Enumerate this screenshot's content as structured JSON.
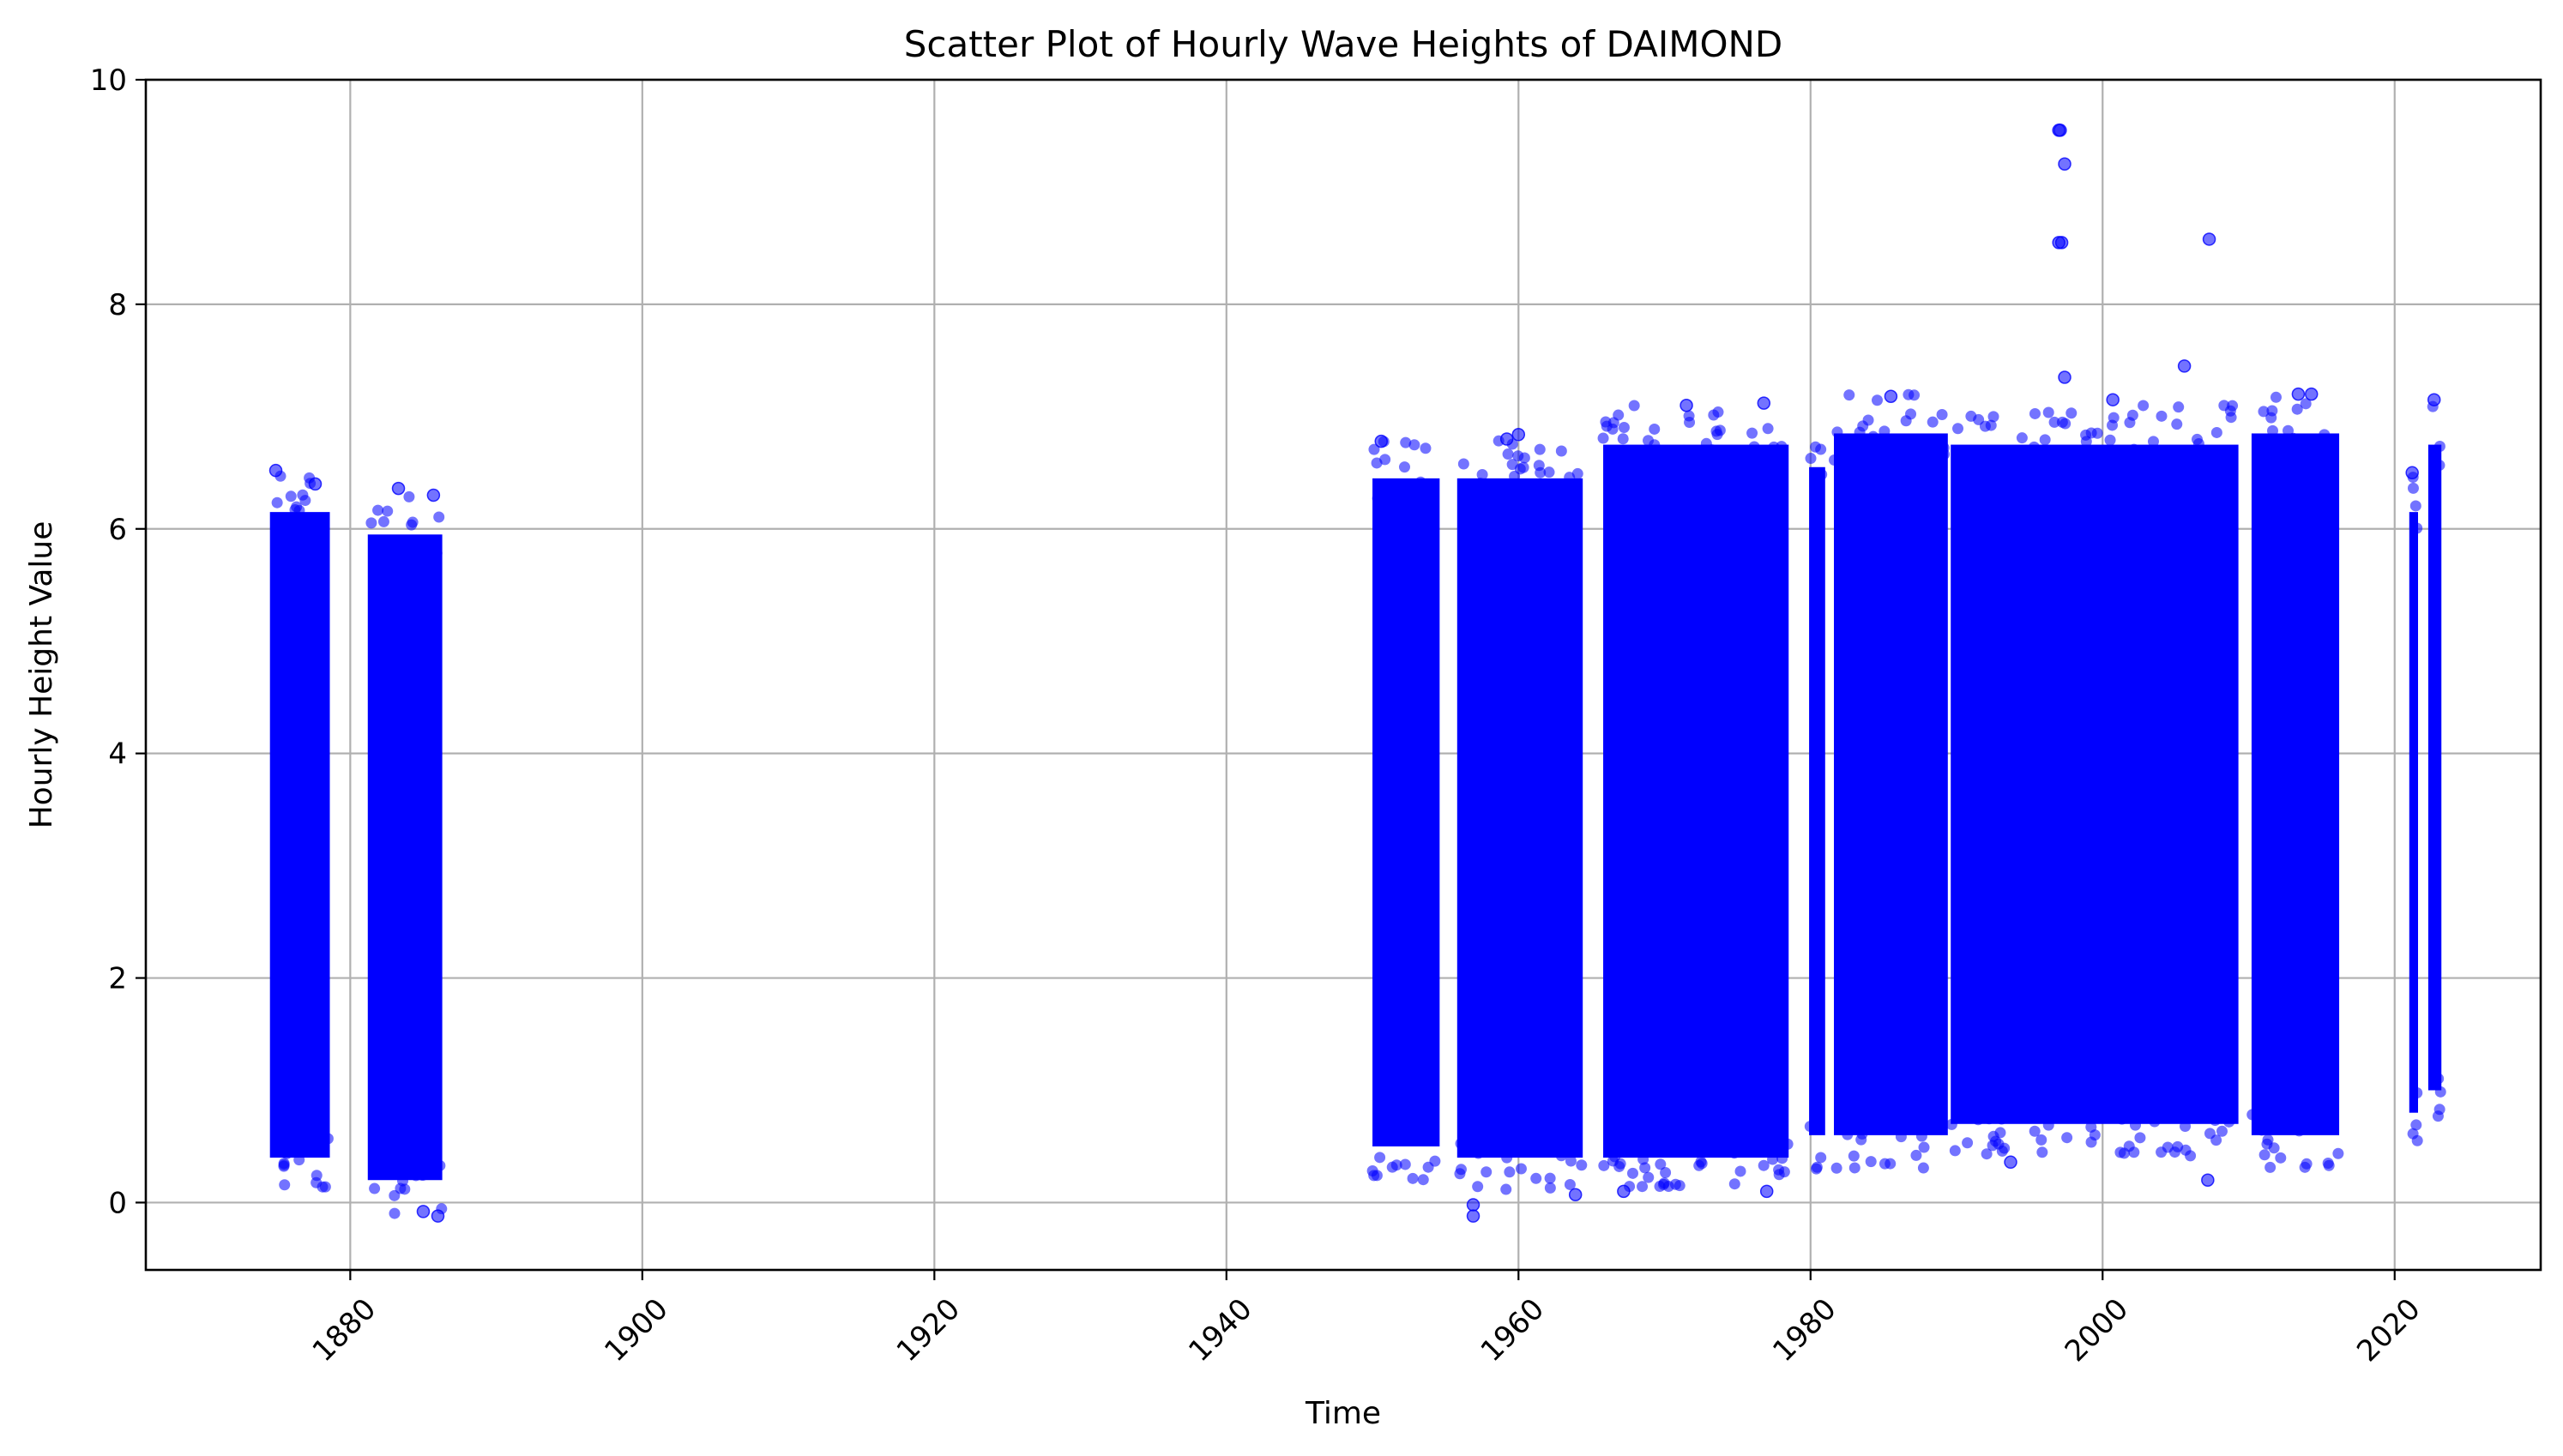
{
  "chart_data": {
    "type": "scatter",
    "title": "Scatter Plot of Hourly Wave Heights of DAIMOND",
    "xlabel": "Time",
    "ylabel": "Hourly Height Value",
    "xlim": [
      1866,
      2030
    ],
    "ylim": [
      -0.6,
      10
    ],
    "x_ticks": [
      1880,
      1900,
      1920,
      1940,
      1960,
      1980,
      2000,
      2020
    ],
    "x_tick_labels": [
      "1880",
      "1900",
      "1920",
      "1940",
      "1960",
      "1980",
      "2000",
      "2020"
    ],
    "y_ticks": [
      0,
      2,
      4,
      6,
      8,
      10
    ],
    "y_tick_labels": [
      "0",
      "2",
      "4",
      "6",
      "8",
      "10"
    ],
    "x_tick_rotation_deg": 45,
    "grid": true,
    "marker_color": "#0000ff",
    "marker_alpha": 0.55,
    "dense_ranges": [
      {
        "x_start": 1874.5,
        "x_end": 1878.6,
        "y_min": 0.1,
        "y_max": 6.5
      },
      {
        "x_start": 1881.2,
        "x_end": 1886.3,
        "y_min": -0.1,
        "y_max": 6.3
      },
      {
        "x_start": 1950.0,
        "x_end": 1954.6,
        "y_min": 0.2,
        "y_max": 6.8
      },
      {
        "x_start": 1955.8,
        "x_end": 1964.4,
        "y_min": 0.1,
        "y_max": 6.8
      },
      {
        "x_start": 1965.8,
        "x_end": 1978.5,
        "y_min": 0.1,
        "y_max": 7.1
      },
      {
        "x_start": 1979.9,
        "x_end": 1981.0,
        "y_min": 0.3,
        "y_max": 6.9
      },
      {
        "x_start": 1981.6,
        "x_end": 1989.4,
        "y_min": 0.3,
        "y_max": 7.2
      },
      {
        "x_start": 1989.6,
        "x_end": 2009.3,
        "y_min": 0.4,
        "y_max": 7.1
      },
      {
        "x_start": 2010.2,
        "x_end": 2016.2,
        "y_min": 0.3,
        "y_max": 7.2
      },
      {
        "x_start": 2021.0,
        "x_end": 2021.6,
        "y_min": 0.5,
        "y_max": 6.5
      },
      {
        "x_start": 2022.3,
        "x_end": 2023.2,
        "y_min": 0.7,
        "y_max": 7.1
      }
    ],
    "points": [
      {
        "x": 1997.0,
        "y": 9.55
      },
      {
        "x": 1997.1,
        "y": 9.55
      },
      {
        "x": 1997.4,
        "y": 9.25
      },
      {
        "x": 1997.0,
        "y": 8.55
      },
      {
        "x": 1997.2,
        "y": 8.55
      },
      {
        "x": 2007.3,
        "y": 8.58
      },
      {
        "x": 2005.6,
        "y": 7.45
      },
      {
        "x": 1997.4,
        "y": 7.35
      },
      {
        "x": 1985.5,
        "y": 7.18
      },
      {
        "x": 1976.8,
        "y": 7.12
      },
      {
        "x": 2022.7,
        "y": 7.15
      },
      {
        "x": 2000.7,
        "y": 7.15
      },
      {
        "x": 2013.4,
        "y": 7.2
      },
      {
        "x": 2014.3,
        "y": 7.2
      },
      {
        "x": 1971.5,
        "y": 7.1
      },
      {
        "x": 1956.9,
        "y": -0.02
      },
      {
        "x": 1956.9,
        "y": -0.12
      },
      {
        "x": 1886.0,
        "y": -0.12
      },
      {
        "x": 1885.0,
        "y": -0.08
      },
      {
        "x": 1874.9,
        "y": 6.52
      },
      {
        "x": 1877.6,
        "y": 6.4
      },
      {
        "x": 1883.3,
        "y": 6.36
      },
      {
        "x": 1885.7,
        "y": 6.3
      },
      {
        "x": 1960.0,
        "y": 6.84
      },
      {
        "x": 1950.6,
        "y": 6.78
      },
      {
        "x": 1959.2,
        "y": 6.8
      },
      {
        "x": 1963.9,
        "y": 0.07
      },
      {
        "x": 1977.0,
        "y": 0.1
      },
      {
        "x": 1967.2,
        "y": 0.1
      },
      {
        "x": 1993.7,
        "y": 0.36
      },
      {
        "x": 2007.2,
        "y": 0.2
      },
      {
        "x": 2021.2,
        "y": 6.5
      }
    ]
  }
}
